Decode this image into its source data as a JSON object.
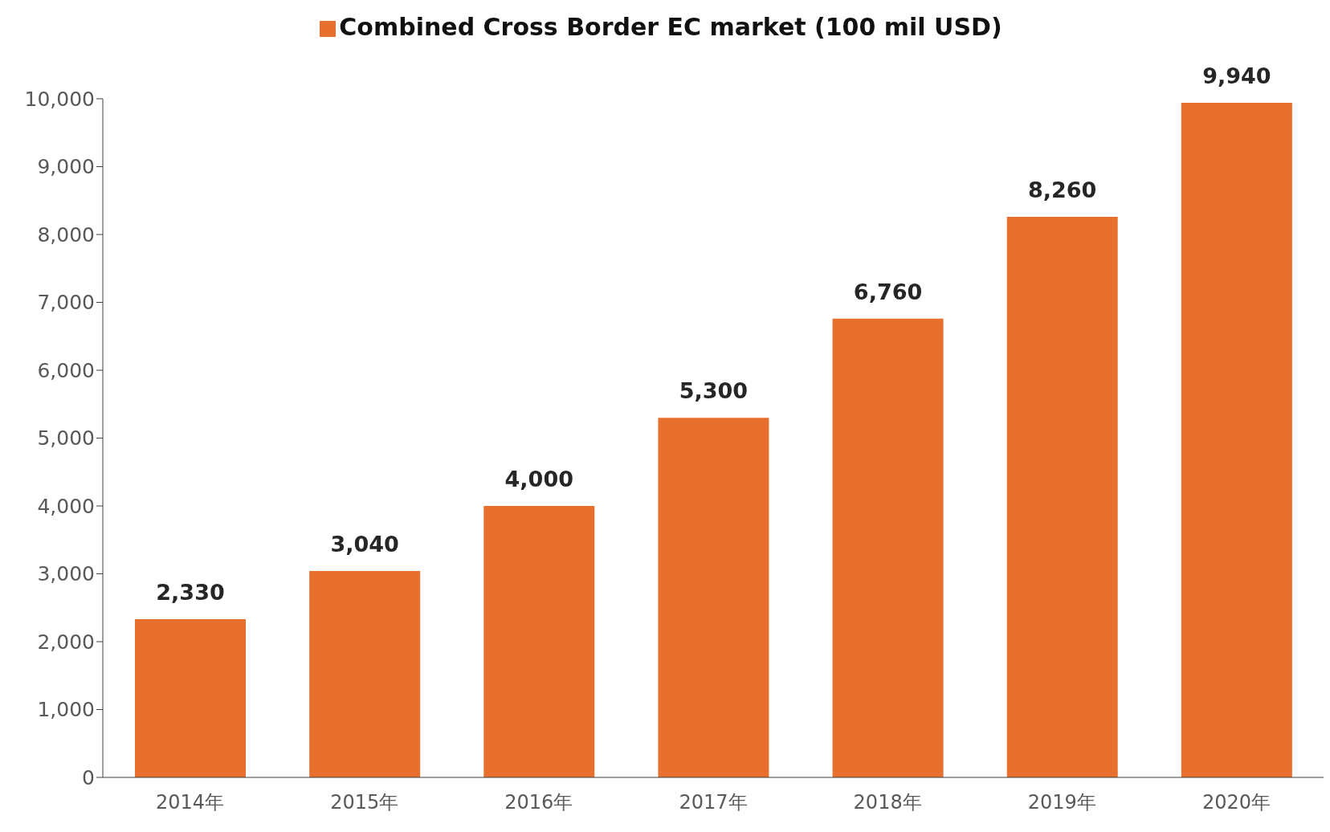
{
  "chart_data": {
    "type": "bar",
    "categories": [
      "2014年",
      "2015年",
      "2016年",
      "2017年",
      "2018年",
      "2019年",
      "2020年"
    ],
    "series": [
      {
        "name": "Combined Cross Border EC market (100 mil USD)",
        "color": "#e8702f",
        "values": [
          2330,
          3040,
          4000,
          5300,
          6760,
          8260,
          9940
        ]
      }
    ],
    "ylim": [
      0,
      10000
    ],
    "yticks": [
      {
        "value": 0,
        "label": "0"
      },
      {
        "value": 1000,
        "label": "1,000"
      },
      {
        "value": 2000,
        "label": "2,000"
      },
      {
        "value": 3000,
        "label": "3,000"
      },
      {
        "value": 4000,
        "label": "4,000"
      },
      {
        "value": 5000,
        "label": "5,000"
      },
      {
        "value": 6000,
        "label": "6,000"
      },
      {
        "value": 7000,
        "label": "7,000"
      },
      {
        "value": 8000,
        "label": "8,000"
      },
      {
        "value": 9000,
        "label": "9,000"
      },
      {
        "value": 10000,
        "label": "10,000"
      }
    ],
    "value_labels": [
      [
        "2,330",
        "3,040",
        "4,000",
        "5,300",
        "6,760",
        "8,260",
        "9,940"
      ]
    ],
    "legend": "top",
    "grid": false
  }
}
